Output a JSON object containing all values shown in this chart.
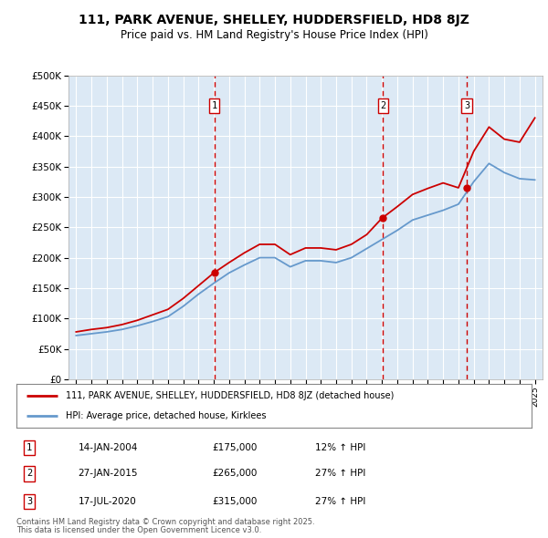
{
  "title": "111, PARK AVENUE, SHELLEY, HUDDERSFIELD, HD8 8JZ",
  "subtitle": "Price paid vs. HM Land Registry's House Price Index (HPI)",
  "background_color": "#dce9f5",
  "plot_bg_color": "#dce9f5",
  "ylim": [
    0,
    500000
  ],
  "yticks": [
    0,
    50000,
    100000,
    150000,
    200000,
    250000,
    300000,
    350000,
    400000,
    450000,
    500000
  ],
  "ytick_labels": [
    "£0",
    "£50K",
    "£100K",
    "£150K",
    "£200K",
    "£250K",
    "£300K",
    "£350K",
    "£400K",
    "£450K",
    "£500K"
  ],
  "sale_prices": [
    175000,
    265000,
    315000
  ],
  "sale_labels": [
    "1",
    "2",
    "3"
  ],
  "sale_year_floats": [
    2004.04,
    2015.07,
    2020.54
  ],
  "vline_color": "#cc0000",
  "red_line_color": "#cc0000",
  "blue_line_color": "#6699cc",
  "legend_label_red": "111, PARK AVENUE, SHELLEY, HUDDERSFIELD, HD8 8JZ (detached house)",
  "legend_label_blue": "HPI: Average price, detached house, Kirklees",
  "footer1": "Contains HM Land Registry data © Crown copyright and database right 2025.",
  "footer2": "This data is licensed under the Open Government Licence v3.0.",
  "table_rows": [
    [
      "1",
      "14-JAN-2004",
      "£175,000",
      "12% ↑ HPI"
    ],
    [
      "2",
      "27-JAN-2015",
      "£265,000",
      "27% ↑ HPI"
    ],
    [
      "3",
      "17-JUL-2020",
      "£315,000",
      "27% ↑ HPI"
    ]
  ],
  "hpi_years": [
    1995,
    1995.5,
    1996,
    1996.5,
    1997,
    1997.5,
    1998,
    1998.5,
    1999,
    1999.5,
    2000,
    2000.5,
    2001,
    2001.5,
    2002,
    2002.5,
    2003,
    2003.5,
    2004,
    2004.5,
    2005,
    2005.5,
    2006,
    2006.5,
    2007,
    2007.5,
    2008,
    2008.5,
    2009,
    2009.5,
    2010,
    2010.5,
    2011,
    2011.5,
    2012,
    2012.5,
    2013,
    2013.5,
    2014,
    2014.5,
    2015,
    2015.5,
    2016,
    2016.5,
    2017,
    2017.5,
    2018,
    2018.5,
    2019,
    2019.5,
    2020,
    2020.5,
    2021,
    2021.5,
    2022,
    2022.5,
    2023,
    2023.5,
    2024,
    2024.5,
    2025
  ],
  "hpi_values": [
    72000,
    73500,
    75000,
    76500,
    78000,
    80000,
    82000,
    85000,
    88000,
    91500,
    95000,
    99000,
    103000,
    111500,
    120000,
    130000,
    140000,
    149000,
    158000,
    166500,
    175000,
    181500,
    188000,
    194000,
    200000,
    200000,
    200000,
    192500,
    185000,
    190000,
    195000,
    195000,
    195000,
    193500,
    192000,
    196000,
    200000,
    207500,
    215000,
    222500,
    230000,
    237500,
    245000,
    253500,
    262000,
    266000,
    270000,
    274000,
    278000,
    283000,
    288000,
    306500,
    325000,
    340000,
    355000,
    347500,
    340000,
    335000,
    330000,
    329000,
    328000
  ],
  "red_years": [
    1995,
    1995.5,
    1996,
    1996.5,
    1997,
    1997.5,
    1998,
    1998.5,
    1999,
    1999.5,
    2000,
    2000.5,
    2001,
    2001.5,
    2002,
    2002.5,
    2003,
    2003.5,
    2004,
    2004.5,
    2005,
    2005.5,
    2006,
    2006.5,
    2007,
    2007.5,
    2008,
    2008.5,
    2009,
    2009.5,
    2010,
    2010.5,
    2011,
    2011.5,
    2012,
    2012.5,
    2013,
    2013.5,
    2014,
    2014.5,
    2015,
    2015.5,
    2016,
    2016.5,
    2017,
    2017.5,
    2018,
    2018.5,
    2019,
    2019.5,
    2020,
    2020.5,
    2021,
    2021.5,
    2022,
    2022.5,
    2023,
    2023.5,
    2024,
    2024.5,
    2025
  ],
  "red_values": [
    78000,
    80000,
    82000,
    83500,
    85000,
    87500,
    90000,
    93500,
    97000,
    101500,
    106000,
    110500,
    115000,
    124000,
    133000,
    143500,
    154000,
    164500,
    175000,
    183500,
    192000,
    200000,
    208000,
    215000,
    222000,
    222000,
    222000,
    213500,
    205000,
    210500,
    216000,
    216000,
    216000,
    214500,
    213000,
    217500,
    222000,
    230000,
    238000,
    251500,
    265000,
    274500,
    284000,
    294000,
    304000,
    309000,
    314000,
    318500,
    323000,
    319000,
    315000,
    345000,
    375000,
    395000,
    415000,
    405000,
    395000,
    392500,
    390000,
    410000,
    430000
  ],
  "xlim_start": 1994.5,
  "xlim_end": 2025.5
}
